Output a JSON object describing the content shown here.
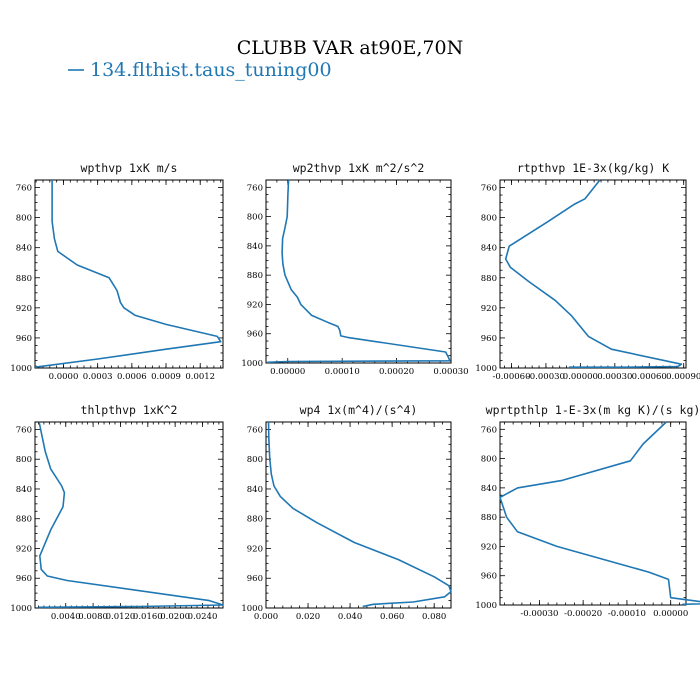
{
  "figure": {
    "title": "CLUBB VAR at90E,70N",
    "legend": [
      {
        "label": "134.flthist.taus_tuning00",
        "color": "#1f77b4"
      }
    ]
  },
  "chart_data": [
    {
      "type": "line",
      "title": "wpthvp 1xK m/s",
      "xlim": [
        -0.00025,
        0.0014
      ],
      "ylim": [
        1000,
        750
      ],
      "xticks": [
        0.0,
        0.0003,
        0.0006,
        0.0009,
        0.0012
      ],
      "xtick_labels": [
        "0.0000",
        "0.0003",
        "0.0006",
        "0.0009",
        "0.0012"
      ],
      "yticks": [
        760,
        800,
        840,
        880,
        920,
        960,
        1000
      ],
      "series": [
        {
          "color": "#1f77b4",
          "x": [
            -0.0001,
            -0.0001,
            -0.0001,
            -8e-05,
            -5e-05,
            0.00012,
            0.0004,
            0.00047,
            0.0005,
            0.00053,
            0.00063,
            0.0009,
            0.00135,
            0.00138,
            0.0009,
            0.0003,
            -0.00025
          ],
          "y": [
            750,
            770,
            805,
            828,
            845,
            863,
            880,
            897,
            913,
            920,
            930,
            942,
            958,
            965,
            975,
            988,
            999
          ]
        }
      ]
    },
    {
      "type": "line",
      "title": "wp2thvp 1xK m^2/s^2",
      "xlim": [
        -4e-05,
        0.0003
      ],
      "ylim": [
        1000,
        750
      ],
      "xticks": [
        0.0,
        0.0001,
        0.0002,
        0.0003
      ],
      "xtick_labels": [
        "0.00000",
        "0.00010",
        "0.00020",
        "0.00030"
      ],
      "yticks": [
        760,
        800,
        840,
        880,
        920,
        960,
        1000
      ],
      "series": [
        {
          "color": "#1f77b4",
          "x": [
            1.5e-06,
            2e-07,
            -1e-06,
            -5e-06,
            -9.5e-06,
            -1.05e-05,
            -9e-06,
            -5e-06,
            6.5e-06,
            1.75e-05,
            2.4e-05,
            4.4e-05,
            7.5e-05,
            9.2e-05,
            9.55e-05,
            9.75e-05,
            0.00011,
            0.00029,
            0.000295,
            0.000298,
            0.0,
            -3.8e-05
          ],
          "y": [
            750,
            770,
            800,
            815,
            830,
            850,
            865,
            880,
            900,
            910,
            920,
            935,
            945,
            950,
            955,
            963,
            965,
            985,
            992,
            997,
            998,
            999
          ]
        }
      ]
    },
    {
      "type": "line",
      "title": "rtpthvp 1E-3x(kg/kg) K",
      "xlim": [
        -0.0007,
        0.00092
      ],
      "ylim": [
        1000,
        750
      ],
      "xticks": [
        -0.0006,
        -0.0003,
        0.0,
        0.0003,
        0.0006,
        0.0009
      ],
      "xtick_labels": [
        "-0.00060",
        "-0.00030",
        "0.00000",
        "0.00030",
        "0.00060",
        "0.00090"
      ],
      "yticks": [
        760,
        800,
        840,
        880,
        920,
        960,
        1000
      ],
      "series": [
        {
          "color": "#1f77b4",
          "x": [
            0.00017,
            4e-05,
            -5e-05,
            -0.00028,
            -0.00062,
            -0.00065,
            -0.00061,
            -0.00045,
            -0.00022,
            -8e-05,
            0.0,
            7e-05,
            0.00027,
            0.00088,
            0.00085,
            0.0004,
            -0.0001
          ],
          "y": [
            750,
            775,
            782,
            805,
            838,
            855,
            866,
            885,
            910,
            930,
            945,
            958,
            975,
            995,
            998,
            999,
            999
          ]
        }
      ]
    },
    {
      "type": "line",
      "title": "thlpthvp 1xK^2",
      "xlim": [
        -0.0005,
        0.027
      ],
      "ylim": [
        1000,
        750
      ],
      "xticks": [
        0.004,
        0.008,
        0.012,
        0.016,
        0.02,
        0.024
      ],
      "xtick_labels": [
        "0.0040",
        "0.0080",
        "0.0120",
        "0.0160",
        "0.0200",
        "0.0240"
      ],
      "yticks": [
        760,
        800,
        840,
        880,
        920,
        960,
        1000
      ],
      "series": [
        {
          "color": "#1f77b4",
          "x": [
            0.0001,
            0.0006,
            0.001,
            0.0018,
            0.0034,
            0.0038,
            0.0036,
            0.0018,
            0.0002,
            0.0004,
            0.0013,
            0.0042,
            0.025,
            0.027,
            0.0148,
            0.0
          ],
          "y": [
            750,
            772,
            790,
            813,
            836,
            845,
            864,
            895,
            930,
            948,
            957,
            963,
            990,
            996,
            998,
            999
          ]
        }
      ]
    },
    {
      "type": "line",
      "title": "wp4 1x(m^4)/(s^4)",
      "xlim": [
        0.0,
        0.088
      ],
      "ylim": [
        1000,
        750
      ],
      "xticks": [
        0.0,
        0.02,
        0.04,
        0.06,
        0.08
      ],
      "xtick_labels": [
        "0.000",
        "0.020",
        "0.040",
        "0.060",
        "0.080"
      ],
      "yticks": [
        760,
        800,
        840,
        880,
        920,
        960,
        1000
      ],
      "series": [
        {
          "color": "#1f77b4",
          "x": [
            0.0012,
            0.0014,
            0.0018,
            0.0025,
            0.0038,
            0.0068,
            0.0128,
            0.024,
            0.042,
            0.063,
            0.08,
            0.087,
            0.088,
            0.085,
            0.07,
            0.051,
            0.046
          ],
          "y": [
            750,
            775,
            800,
            820,
            836,
            850,
            866,
            885,
            912,
            935,
            958,
            970,
            978,
            985,
            992,
            995,
            998
          ]
        }
      ]
    },
    {
      "type": "line",
      "title": "wprtpthlp 1-E-3x(m kg K)/(s kg)",
      "xlim": [
        -0.00039,
        3.5e-05
      ],
      "ylim": [
        1000,
        750
      ],
      "xticks": [
        -0.0003,
        -0.0002,
        -0.0001,
        0.0
      ],
      "xtick_labels": [
        "-0.00030",
        "-0.00020",
        "-0.00010",
        "0.00000"
      ],
      "yticks": [
        760,
        800,
        840,
        880,
        920,
        960,
        1000
      ],
      "series": [
        {
          "color": "#1f77b4",
          "x": [
            -1e-05,
            -6.3e-05,
            -9.2e-05,
            -0.00025,
            -0.00035,
            -0.00039,
            -0.000375,
            -0.00035,
            -0.00026,
            -5e-05,
            -5e-06,
            0.0,
            0.0001,
            2.8e-05,
            3e-05
          ],
          "y": [
            750,
            780,
            803,
            830,
            840,
            853,
            880,
            900,
            920,
            955,
            965,
            990,
            998,
            999,
            999
          ]
        }
      ]
    }
  ]
}
